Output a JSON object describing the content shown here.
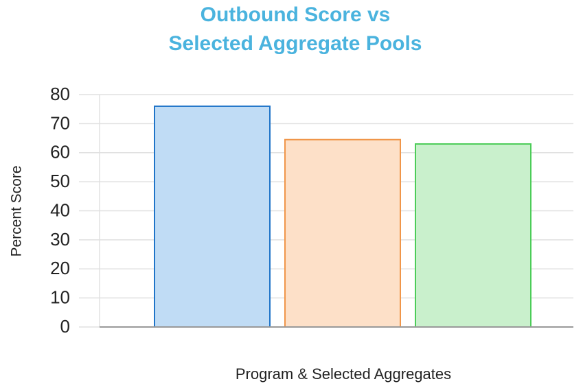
{
  "chart_data": {
    "type": "bar",
    "title": [
      "Outbound Score vs",
      "Selected Aggregate Pools"
    ],
    "x_label": "Program & Selected Aggregates",
    "y_label": "Percent Score",
    "categories": [
      null,
      null,
      null
    ],
    "values": [
      76,
      64.5,
      63
    ],
    "colors": [
      "#c0dcf5",
      "#fde0c8",
      "#c9f0cc"
    ],
    "edge_colors": [
      "#1f74c8",
      "#f0964a",
      "#4ccc58"
    ],
    "ylim": [
      0,
      80
    ],
    "yticks": [
      0,
      10,
      20,
      30,
      40,
      50,
      60,
      70,
      80
    ],
    "grid": true
  }
}
